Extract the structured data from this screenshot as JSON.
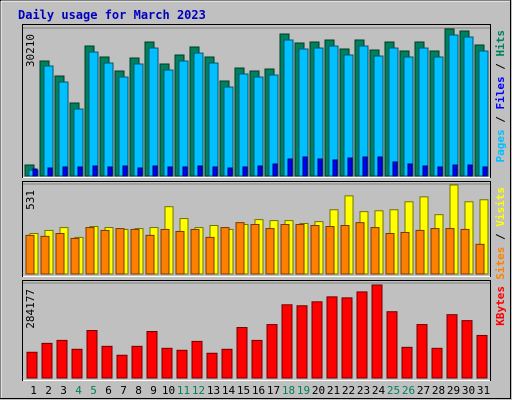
{
  "chart_data": [
    {
      "type": "bar",
      "title": "Daily usage for March 2023",
      "ylim": [
        0,
        30210
      ],
      "yticks": [
        30210
      ],
      "legend_separator": " / ",
      "series": [
        {
          "name": "Pages",
          "color": "#00c0ff",
          "values": [
            1200,
            22450,
            19180,
            13670,
            25290,
            23060,
            20200,
            22860,
            26120,
            21630,
            23470,
            25090,
            23060,
            18160,
            20820,
            20200,
            20610,
            27760,
            25920,
            26120,
            26530,
            24700,
            26530,
            24490,
            26120,
            24290,
            26120,
            24290,
            28780,
            28370,
            25510
          ]
        },
        {
          "name": "Files",
          "color": "#0000ff",
          "values": [
            1430,
            1630,
            1840,
            1840,
            2040,
            1840,
            2040,
            1630,
            2040,
            1840,
            1840,
            2040,
            1840,
            1630,
            1840,
            2040,
            2450,
            3470,
            3880,
            3470,
            3270,
            3670,
            3880,
            3880,
            2860,
            2450,
            2040,
            1840,
            2240,
            2240,
            1840
          ]
        },
        {
          "name": "Hits",
          "color": "#00805c",
          "values": [
            2245,
            23474,
            20412,
            14901,
            26536,
            24290,
            21433,
            24086,
            27352,
            22861,
            24699,
            26331,
            24290,
            19391,
            22045,
            21433,
            21841,
            28985,
            27148,
            27352,
            27760,
            25923,
            27760,
            25719,
            27352,
            25515,
            27352,
            25515,
            30006,
            29598,
            26740
          ]
        }
      ]
    },
    {
      "type": "bar",
      "ylim": [
        0,
        531
      ],
      "yticks": [
        531
      ],
      "legend_separator": " / ",
      "series": [
        {
          "name": "Sites",
          "color": "#ff8000",
          "values": [
            228,
            222,
            239,
            210,
            274,
            257,
            268,
            263,
            228,
            263,
            251,
            263,
            216,
            274,
            303,
            292,
            268,
            292,
            292,
            286,
            280,
            286,
            303,
            274,
            239,
            245,
            257,
            268,
            268,
            263,
            175
          ]
        },
        {
          "name": "Visits",
          "color": "#ffff00",
          "values": [
            239,
            257,
            274,
            216,
            280,
            274,
            263,
            268,
            274,
            397,
            327,
            274,
            286,
            263,
            292,
            321,
            315,
            315,
            298,
            309,
            379,
            461,
            368,
            373,
            379,
            426,
            455,
            350,
            525,
            426,
            438
          ]
        }
      ]
    },
    {
      "type": "bar",
      "ylim": [
        0,
        284177
      ],
      "yticks": [
        284177
      ],
      "categories": [
        "1",
        "2",
        "3",
        "4",
        "5",
        "6",
        "7",
        "8",
        "9",
        "10",
        "11",
        "12",
        "13",
        "14",
        "15",
        "16",
        "17",
        "18",
        "19",
        "20",
        "21",
        "22",
        "23",
        "24",
        "25",
        "26",
        "27",
        "28",
        "29",
        "30",
        "31"
      ],
      "category_colors": [
        "#000000",
        "#000000",
        "#000000",
        "#00805c",
        "#00805c",
        "#000000",
        "#000000",
        "#000000",
        "#000000",
        "#000000",
        "#00805c",
        "#00805c",
        "#000000",
        "#000000",
        "#000000",
        "#000000",
        "#000000",
        "#00805c",
        "#00805c",
        "#000000",
        "#000000",
        "#000000",
        "#000000",
        "#000000",
        "#00805c",
        "#00805c",
        "#000000",
        "#000000",
        "#000000",
        "#000000",
        "#000000"
      ],
      "series": [
        {
          "name": "KBytes",
          "color": "#ff0000",
          "values": [
            76960,
            103600,
            112480,
            85840,
            142080,
            94720,
            68080,
            94720,
            139120,
            88800,
            82880,
            109520,
            74000,
            85840,
            150960,
            112480,
            159840,
            219040,
            216080,
            227920,
            242720,
            239760,
            257520,
            278240,
            198320,
            91760,
            159840,
            88800,
            189440,
            171680,
            127280
          ]
        }
      ]
    }
  ]
}
